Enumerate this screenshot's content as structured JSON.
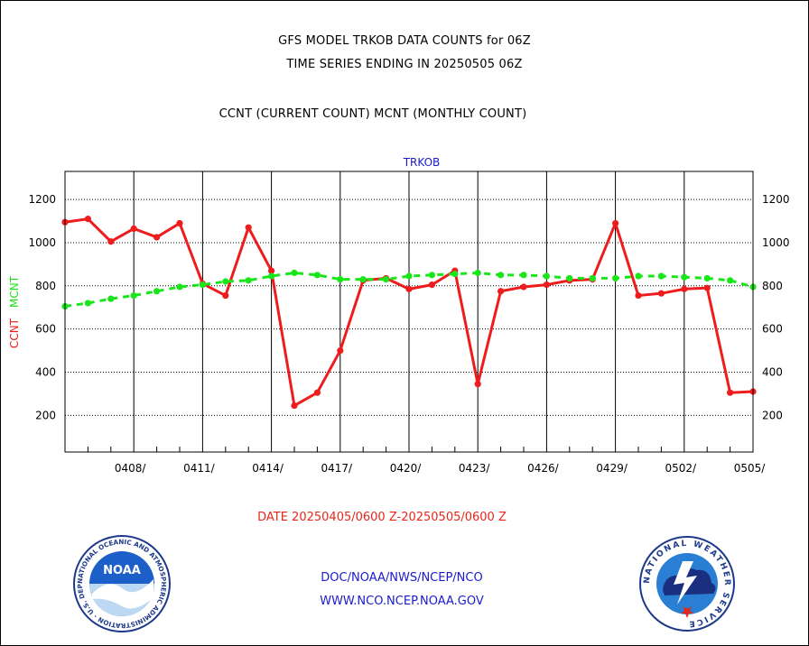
{
  "titles": {
    "line1": "GFS MODEL TRKOB DATA COUNTS for 06Z",
    "line2": "TIME SERIES ENDING IN 20250505 06Z",
    "line3": "CCNT (CURRENT COUNT) MCNT (MONTHLY COUNT)"
  },
  "footer": {
    "date_range": "DATE 20250405/0600 Z-20250505/0600 Z",
    "org_path": "DOC/NOAA/NWS/NCEP/NCO",
    "website": "WWW.NCO.NCEP.NOAA.GOV"
  },
  "logos": {
    "noaa": {
      "text": "NOAA",
      "ring_text": "NATIONAL OCEANIC AND ATMOSPHERIC ADMINISTRATION · U.S. DEPARTMENT OF COMMERCE"
    },
    "nws": {
      "ring_text": "NATIONAL WEATHER SERVICE"
    }
  },
  "colors": {
    "ccnt": "#ee1c1c",
    "mcnt": "#19e619",
    "label_blue": "#1a1acc"
  },
  "chart_data": {
    "type": "line",
    "title": "TRKOB",
    "xlabel": "",
    "ylabel_parts": [
      {
        "text": "CCNT",
        "color": "#ee1c1c"
      },
      {
        "text": "MCNT",
        "color": "#19e619"
      }
    ],
    "ylim": [
      30,
      1330
    ],
    "xlim": [
      0,
      30
    ],
    "yticks": [
      200,
      400,
      600,
      800,
      1000,
      1200
    ],
    "xticks": [
      {
        "x": 3,
        "label": "0408/"
      },
      {
        "x": 6,
        "label": "0411/"
      },
      {
        "x": 9,
        "label": "0414/"
      },
      {
        "x": 12,
        "label": "0417/"
      },
      {
        "x": 15,
        "label": "0420/"
      },
      {
        "x": 18,
        "label": "0423/"
      },
      {
        "x": 21,
        "label": "0426/"
      },
      {
        "x": 24,
        "label": "0429/"
      },
      {
        "x": 27,
        "label": "0502/"
      },
      {
        "x": 30,
        "label": "0505/"
      }
    ],
    "grid": true,
    "series": [
      {
        "name": "CCNT",
        "style": "solid",
        "values": [
          1095,
          1110,
          1005,
          1065,
          1025,
          1090,
          810,
          755,
          1070,
          870,
          245,
          305,
          500,
          825,
          835,
          785,
          805,
          870,
          345,
          775,
          795,
          805,
          825,
          830,
          1090,
          755,
          765,
          785,
          790,
          305,
          310
        ]
      },
      {
        "name": "MCNT",
        "style": "dashed",
        "values": [
          705,
          720,
          740,
          755,
          775,
          795,
          805,
          820,
          825,
          845,
          860,
          850,
          830,
          830,
          830,
          845,
          850,
          855,
          860,
          850,
          850,
          845,
          835,
          835,
          835,
          845,
          845,
          840,
          835,
          825,
          795
        ]
      }
    ]
  }
}
